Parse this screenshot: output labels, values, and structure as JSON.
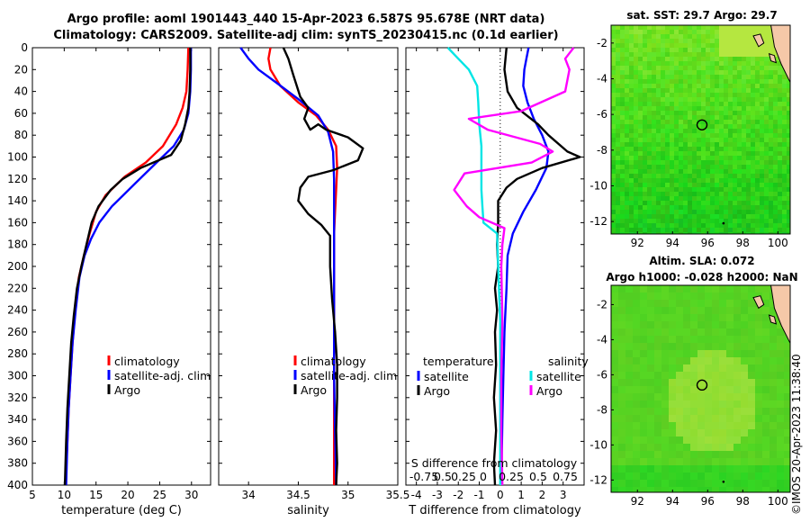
{
  "header": {
    "line1": "Argo profile: aoml 1901443_440 15-Apr-2023 6.587S 95.678E (NRT data)",
    "line2": "Climatology: CARS2009. Satellite-adj clim: synTS_20230415.nc (0.1d earlier)"
  },
  "maps": {
    "sst_title": "sat. SST: 29.7 Argo: 29.7",
    "sla_title_1": "Altim. SLA: 0.072",
    "sla_title_2": "Argo h1000: -0.028 h2000: NaN",
    "colors": {
      "land": "#f5c8a8",
      "sst_base": "#5ee02a",
      "sla_base": "#5ad32a"
    },
    "argo_position": {
      "lon": 95.678,
      "lat": -6.587
    }
  },
  "stamp": "©IMOS 20-Apr-2023 11:38:40",
  "colors": {
    "climatology": "#ff0000",
    "satellite": "#0000ff",
    "argo": "#000000",
    "sat_salt": "#00e5e5",
    "argo_salt": "#ff00ff"
  },
  "chart_data": [
    {
      "type": "line",
      "id": "temperature",
      "xlabel": "temperature (deg C)",
      "ylabel": "",
      "xlim": [
        5,
        33
      ],
      "ylim": [
        400,
        0
      ],
      "xticks": [
        5,
        10,
        15,
        20,
        25,
        30
      ],
      "yticks": [
        0,
        20,
        40,
        60,
        80,
        100,
        120,
        140,
        160,
        180,
        200,
        220,
        240,
        260,
        280,
        300,
        320,
        340,
        360,
        380,
        400
      ],
      "legend": {
        "position": "lower-right",
        "entries": [
          "climatology",
          "satellite-adj. clim",
          "Argo"
        ]
      },
      "series": [
        {
          "name": "climatology",
          "color": "red",
          "points": [
            [
              29.5,
              0
            ],
            [
              29.4,
              20
            ],
            [
              29.2,
              40
            ],
            [
              28.6,
              55
            ],
            [
              27.6,
              70
            ],
            [
              25.5,
              90
            ],
            [
              22.8,
              105
            ],
            [
              19.5,
              118
            ],
            [
              16.5,
              135
            ],
            [
              15,
              150
            ],
            [
              14,
              170
            ],
            [
              13.1,
              190
            ],
            [
              12.3,
              210
            ],
            [
              11.7,
              240
            ],
            [
              11.3,
              270
            ],
            [
              11,
              300
            ],
            [
              10.7,
              330
            ],
            [
              10.5,
              360
            ],
            [
              10.2,
              400
            ]
          ]
        },
        {
          "name": "satellite-adj. clim",
          "color": "blue",
          "points": [
            [
              29.9,
              0
            ],
            [
              29.9,
              20
            ],
            [
              29.8,
              40
            ],
            [
              29.5,
              60
            ],
            [
              28.8,
              75
            ],
            [
              27.2,
              90
            ],
            [
              24.5,
              105
            ],
            [
              21,
              125
            ],
            [
              17.5,
              145
            ],
            [
              15.5,
              160
            ],
            [
              14.2,
              175
            ],
            [
              13.2,
              190
            ],
            [
              12.4,
              210
            ],
            [
              11.8,
              240
            ],
            [
              11.3,
              270
            ],
            [
              11,
              300
            ],
            [
              10.7,
              330
            ],
            [
              10.5,
              360
            ],
            [
              10.3,
              400
            ]
          ]
        },
        {
          "name": "Argo",
          "color": "black",
          "points": [
            [
              29.8,
              0
            ],
            [
              29.8,
              20
            ],
            [
              29.7,
              40
            ],
            [
              29.5,
              55
            ],
            [
              29,
              70
            ],
            [
              28.3,
              85
            ],
            [
              26.8,
              98
            ],
            [
              22,
              110
            ],
            [
              19.2,
              120
            ],
            [
              17.3,
              130
            ],
            [
              15.4,
              145
            ],
            [
              14.3,
              160
            ],
            [
              13.5,
              180
            ],
            [
              12.7,
              200
            ],
            [
              12,
              220
            ],
            [
              11.5,
              245
            ],
            [
              11.1,
              270
            ],
            [
              10.8,
              300
            ],
            [
              10.5,
              330
            ],
            [
              10.3,
              360
            ],
            [
              10.1,
              400
            ]
          ]
        }
      ]
    },
    {
      "type": "line",
      "id": "salinity",
      "xlabel": "salinity",
      "xlim": [
        33.7,
        35.5
      ],
      "ylim": [
        400,
        0
      ],
      "xticks": [
        34,
        34.5,
        35,
        35.5
      ],
      "xticklabels": [
        "34",
        "34.5",
        "35",
        "35.5"
      ],
      "legend": {
        "position": "lower-right",
        "entries": [
          "climatology",
          "satellite-adj. clim",
          "Argo"
        ]
      },
      "series": [
        {
          "name": "climatology",
          "color": "red",
          "points": [
            [
              34.22,
              0
            ],
            [
              34.2,
              10
            ],
            [
              34.22,
              20
            ],
            [
              34.32,
              35
            ],
            [
              34.5,
              50
            ],
            [
              34.68,
              62
            ],
            [
              34.8,
              75
            ],
            [
              34.88,
              90
            ],
            [
              34.89,
              110
            ],
            [
              34.88,
              130
            ],
            [
              34.87,
              150
            ],
            [
              34.86,
              170
            ],
            [
              34.86,
              200
            ],
            [
              34.86,
              250
            ],
            [
              34.86,
              300
            ],
            [
              34.86,
              350
            ],
            [
              34.86,
              400
            ]
          ]
        },
        {
          "name": "satellite-adj. clim",
          "color": "blue",
          "points": [
            [
              33.92,
              0
            ],
            [
              34.0,
              10
            ],
            [
              34.1,
              20
            ],
            [
              34.28,
              32
            ],
            [
              34.5,
              47
            ],
            [
              34.7,
              62
            ],
            [
              34.8,
              77
            ],
            [
              34.85,
              95
            ],
            [
              34.86,
              120
            ],
            [
              34.86,
              150
            ],
            [
              34.86,
              200
            ],
            [
              34.86,
              250
            ],
            [
              34.86,
              300
            ],
            [
              34.87,
              350
            ],
            [
              34.88,
              400
            ]
          ]
        },
        {
          "name": "Argo",
          "color": "black",
          "points": [
            [
              34.35,
              0
            ],
            [
              34.4,
              10
            ],
            [
              34.45,
              25
            ],
            [
              34.52,
              45
            ],
            [
              34.6,
              55
            ],
            [
              34.56,
              65
            ],
            [
              34.62,
              75
            ],
            [
              34.7,
              70
            ],
            [
              34.78,
              75
            ],
            [
              35.0,
              82
            ],
            [
              35.15,
              92
            ],
            [
              35.1,
              103
            ],
            [
              34.85,
              112
            ],
            [
              34.6,
              118
            ],
            [
              34.52,
              128
            ],
            [
              34.5,
              140
            ],
            [
              34.6,
              152
            ],
            [
              34.73,
              162
            ],
            [
              34.82,
              172
            ],
            [
              34.82,
              180
            ],
            [
              34.82,
              200
            ],
            [
              34.84,
              230
            ],
            [
              34.87,
              260
            ],
            [
              34.89,
              290
            ],
            [
              34.89,
              320
            ],
            [
              34.88,
              350
            ],
            [
              34.89,
              380
            ],
            [
              34.88,
              400
            ]
          ]
        }
      ]
    },
    {
      "type": "line",
      "id": "difference",
      "xlabel": "T difference from climatology",
      "xlim": [
        -4.5,
        4
      ],
      "ylim": [
        400,
        0
      ],
      "xticks": [
        -4,
        -3,
        -2,
        -1,
        0,
        1,
        2,
        3
      ],
      "xticklabels": [
        "-4",
        "-3",
        "-2",
        "-1",
        "0",
        "1",
        "2",
        "3"
      ],
      "top_axis_label": "S difference from climatology",
      "top_ticklabels": [
        "-0.75",
        "0.5",
        "0.25",
        "0",
        "0.25",
        "0.5",
        "0.75"
      ],
      "zero_line": "dotted",
      "legend": {
        "position": "lower",
        "temperature_header": "temperature",
        "salinity_header": "salinity",
        "temperature_entries": [
          "satellite",
          "Argo"
        ],
        "salinity_entries": [
          "satellite",
          "Argo"
        ]
      },
      "series": [
        {
          "name": "temperature satellite",
          "color": "blue",
          "points": [
            [
              1.35,
              0
            ],
            [
              1.25,
              10
            ],
            [
              1.15,
              20
            ],
            [
              1.1,
              35
            ],
            [
              1.3,
              50
            ],
            [
              1.6,
              65
            ],
            [
              2.0,
              80
            ],
            [
              2.3,
              95
            ],
            [
              2.2,
              110
            ],
            [
              1.7,
              130
            ],
            [
              1.1,
              150
            ],
            [
              0.6,
              170
            ],
            [
              0.35,
              190
            ],
            [
              0.3,
              220
            ],
            [
              0.2,
              260
            ],
            [
              0.15,
              300
            ],
            [
              0.1,
              340
            ],
            [
              0.05,
              400
            ]
          ]
        },
        {
          "name": "temperature Argo",
          "color": "black",
          "points": [
            [
              0.3,
              0
            ],
            [
              0.2,
              20
            ],
            [
              0.35,
              40
            ],
            [
              0.8,
              55
            ],
            [
              1.8,
              70
            ],
            [
              2.3,
              80
            ],
            [
              3.2,
              95
            ],
            [
              3.8,
              100
            ],
            [
              2.0,
              110
            ],
            [
              0.8,
              120
            ],
            [
              0.3,
              128
            ],
            [
              -0.1,
              140
            ],
            [
              -0.1,
              160
            ],
            [
              -0.15,
              180
            ],
            [
              -0.1,
              200
            ],
            [
              -0.25,
              220
            ],
            [
              -0.15,
              240
            ],
            [
              -0.25,
              260
            ],
            [
              -0.2,
              290
            ],
            [
              -0.3,
              320
            ],
            [
              -0.2,
              350
            ],
            [
              -0.3,
              380
            ],
            [
              -0.25,
              400
            ]
          ]
        },
        {
          "name": "salinity satellite",
          "color": "cyan",
          "points": [
            [
              -2.5,
              0
            ],
            [
              -2.0,
              10
            ],
            [
              -1.5,
              20
            ],
            [
              -1.1,
              35
            ],
            [
              -1.05,
              50
            ],
            [
              -1.0,
              70
            ],
            [
              -0.9,
              90
            ],
            [
              -0.9,
              110
            ],
            [
              -0.9,
              130
            ],
            [
              -0.85,
              145
            ],
            [
              -0.8,
              160
            ],
            [
              -0.15,
              170
            ],
            [
              -0.1,
              200
            ],
            [
              0,
              250
            ],
            [
              0,
              300
            ],
            [
              0,
              350
            ],
            [
              0,
              400
            ]
          ]
        },
        {
          "name": "salinity Argo",
          "color": "magenta",
          "points": [
            [
              3.5,
              0
            ],
            [
              3.1,
              10
            ],
            [
              3.3,
              20
            ],
            [
              3.1,
              40
            ],
            [
              1.0,
              58
            ],
            [
              -1.5,
              65
            ],
            [
              -0.6,
              75
            ],
            [
              1.9,
              88
            ],
            [
              2.5,
              95
            ],
            [
              1.5,
              105
            ],
            [
              -1.7,
              115
            ],
            [
              -2.2,
              130
            ],
            [
              -1.6,
              145
            ],
            [
              -1.0,
              155
            ],
            [
              0.2,
              165
            ],
            [
              0.1,
              180
            ],
            [
              0.05,
              200
            ],
            [
              0.1,
              250
            ],
            [
              0.05,
              300
            ],
            [
              0.05,
              350
            ],
            [
              0.1,
              400
            ]
          ]
        }
      ]
    },
    {
      "type": "heatmap",
      "id": "sst_map",
      "title": "sat. SST: 29.7 Argo: 29.7",
      "xlim": [
        90.5,
        100.7
      ],
      "ylim": [
        -12.7,
        -1
      ],
      "xticks": [
        92,
        94,
        96,
        98,
        100
      ],
      "yticks": [
        -2,
        -4,
        -6,
        -8,
        -10,
        -12
      ],
      "argo_marker": {
        "lon": 95.678,
        "lat": -6.587
      }
    },
    {
      "type": "heatmap",
      "id": "sla_map",
      "title": "Altim. SLA: 0.072",
      "xlim": [
        90.5,
        100.7
      ],
      "ylim": [
        -12.7,
        -0.9
      ],
      "xticks": [
        92,
        94,
        96,
        98,
        100
      ],
      "yticks": [
        -2,
        -4,
        -6,
        -8,
        -10,
        -12
      ],
      "argo_marker": {
        "lon": 95.678,
        "lat": -6.587
      }
    }
  ]
}
